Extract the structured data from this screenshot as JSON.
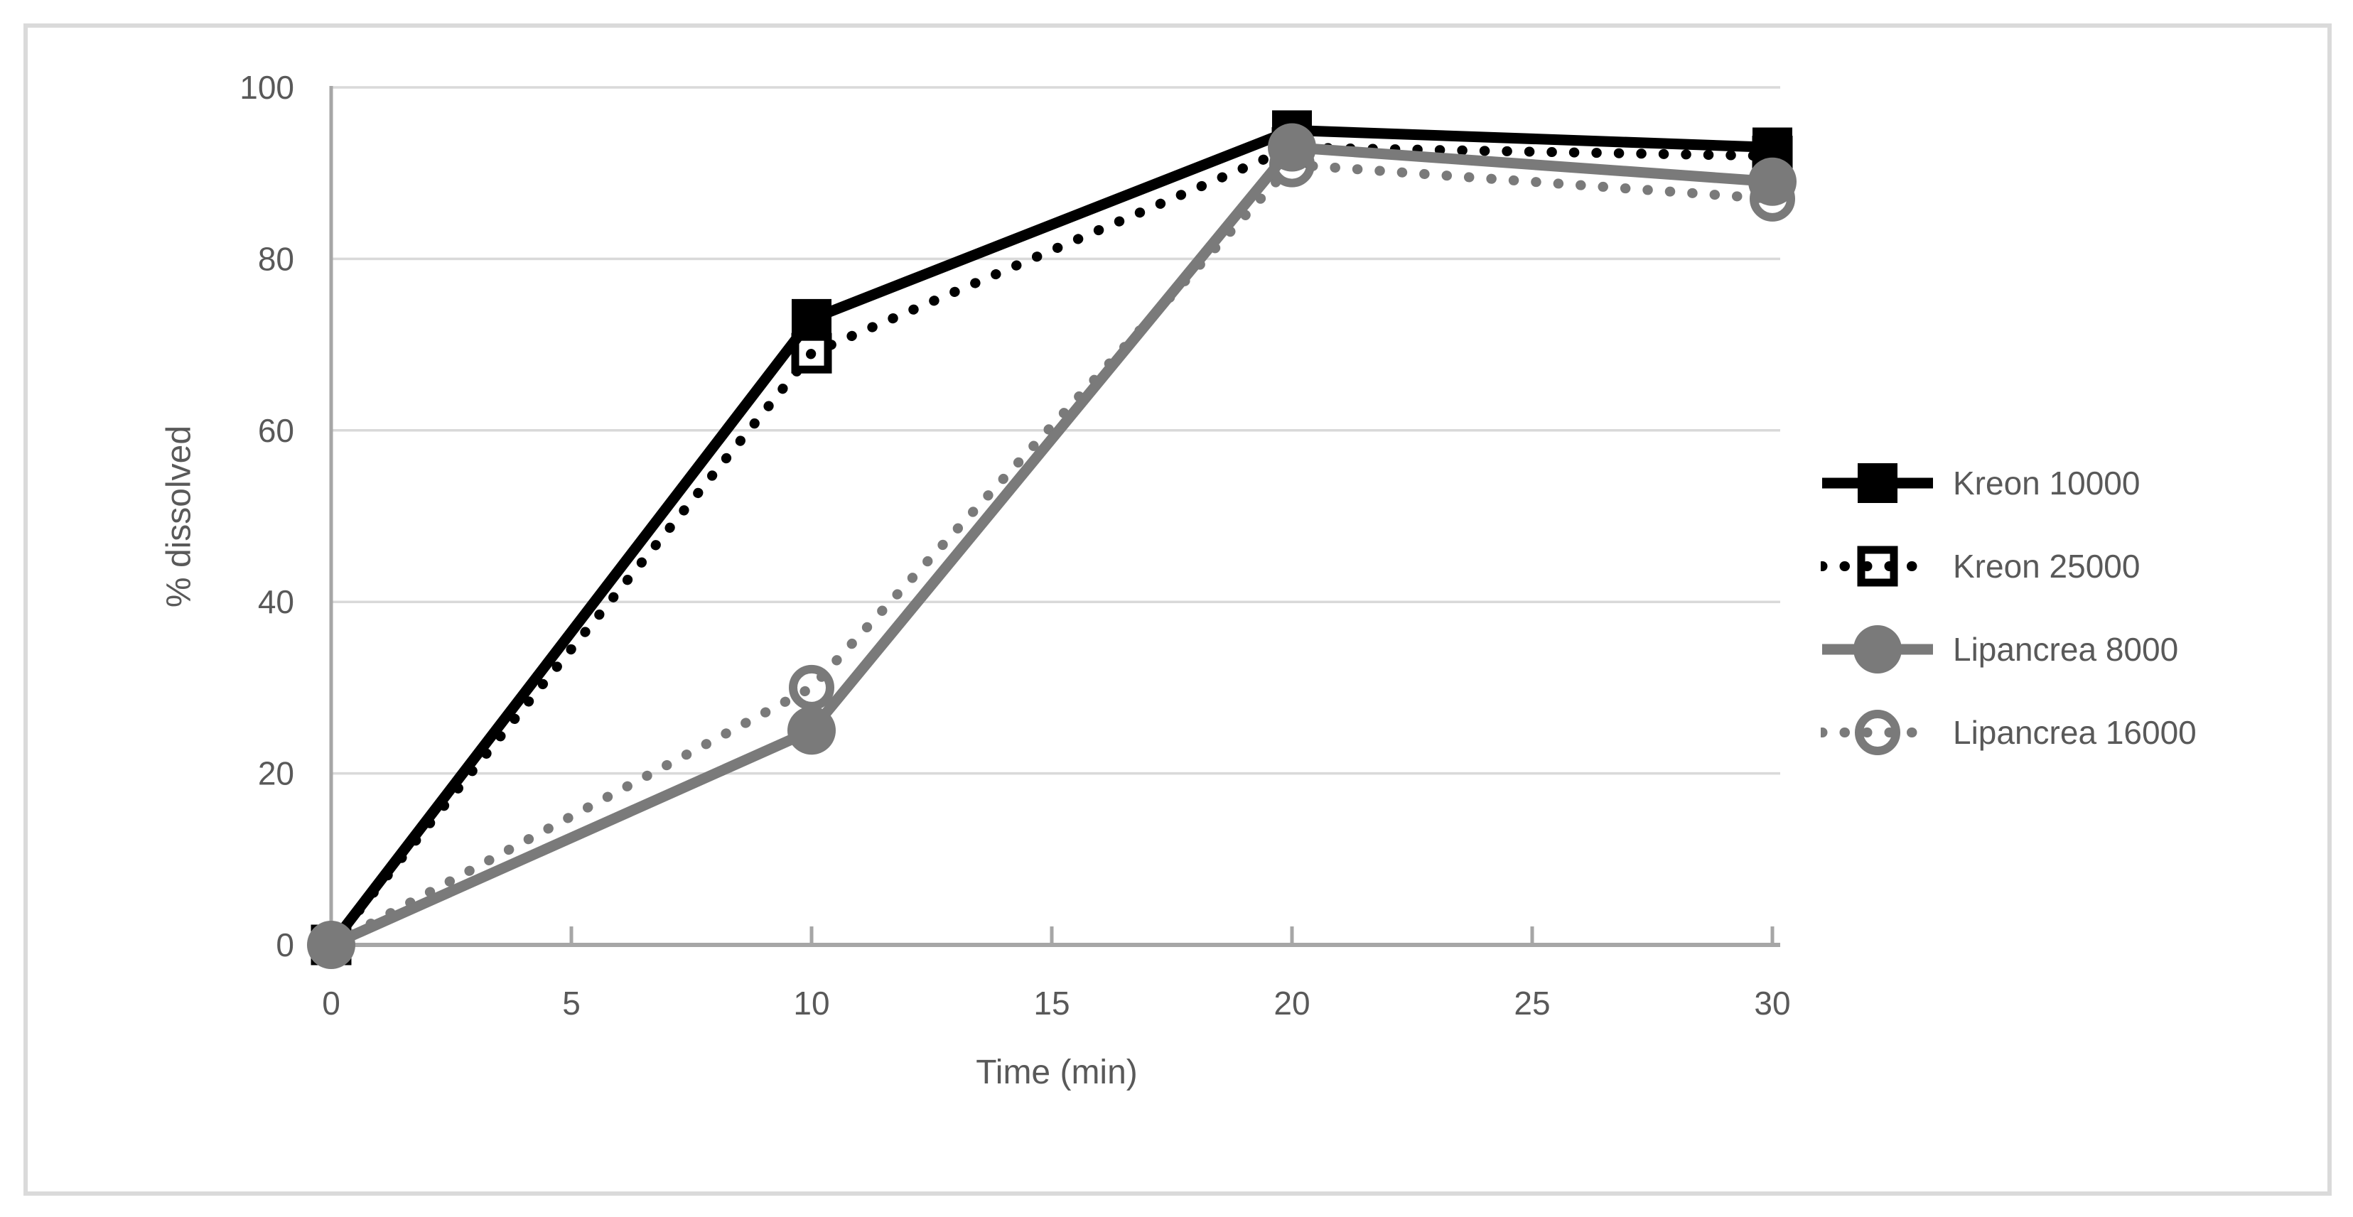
{
  "chart_data": {
    "type": "line",
    "title": "",
    "x": [
      0,
      10,
      20,
      30
    ],
    "x_ticks": [
      0,
      5,
      10,
      15,
      20,
      25,
      30
    ],
    "y_ticks": [
      0,
      20,
      40,
      60,
      80,
      100
    ],
    "xlabel": "Time (min)",
    "ylabel": "% dissolved",
    "xlim": [
      0,
      30
    ],
    "ylim": [
      0,
      100
    ],
    "grid": "horizontal-only",
    "legend_position": "right-middle",
    "series": [
      {
        "name": "Kreon 10000",
        "color": "#000000",
        "line": "solid",
        "marker": "filled-square",
        "values": [
          0,
          73,
          95,
          93
        ]
      },
      {
        "name": "Kreon 25000",
        "color": "#000000",
        "line": "dotted",
        "marker": "open-square",
        "values": [
          0,
          69,
          93,
          92
        ]
      },
      {
        "name": "Lipancrea 8000",
        "color": "#7a7a7a",
        "line": "solid",
        "marker": "filled-circle",
        "values": [
          0,
          25,
          93,
          89
        ]
      },
      {
        "name": "Lipancrea 16000",
        "color": "#7a7a7a",
        "line": "dotted",
        "marker": "open-circle",
        "values": [
          0,
          30,
          91,
          87
        ]
      }
    ]
  },
  "styles": {
    "background": "#ffffff",
    "frame_border": "#dadada",
    "grid_color": "#d9d9d9",
    "axis_color": "#a6a6a6",
    "text_color": "#595959"
  }
}
